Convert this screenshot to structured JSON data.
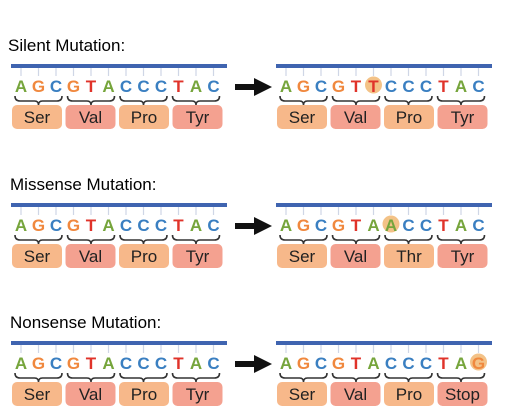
{
  "colors": {
    "A": "#76a53c",
    "G": "#f0883e",
    "C": "#3a7fc1",
    "T": "#e0332a",
    "backbone": "#3f64b0",
    "codon_fill": "#f7b88a",
    "codon_mut_fill": "#f4a190",
    "highlight": "#f2bb7a",
    "brace": "#333333",
    "arrow": "#111111"
  },
  "sections": [
    {
      "title": "Silent Mutation:",
      "original": {
        "bases": "AGCGTACCCTAC",
        "codons": [
          "Ser",
          "Val",
          "Pro",
          "Tyr"
        ]
      },
      "mutated": {
        "bases": "AGCGTTCCCTAC",
        "codons": [
          "Ser",
          "Val",
          "Pro",
          "Tyr"
        ],
        "mutated_index": 5
      }
    },
    {
      "title": "Missense Mutation:",
      "original": {
        "bases": "AGCGTACCCTAC",
        "codons": [
          "Ser",
          "Val",
          "Pro",
          "Tyr"
        ]
      },
      "mutated": {
        "bases": "AGCGTAACCTAC",
        "codons": [
          "Ser",
          "Val",
          "Thr",
          "Tyr"
        ],
        "mutated_index": 6
      }
    },
    {
      "title": "Nonsense Mutation:",
      "original": {
        "bases": "AGCGTACCCTAC",
        "codons": [
          "Ser",
          "Val",
          "Pro",
          "Tyr"
        ]
      },
      "mutated": {
        "bases": "AGCGTACCCTAG",
        "codons": [
          "Ser",
          "Val",
          "Pro",
          "Stop"
        ],
        "mutated_index": 11
      }
    }
  ]
}
